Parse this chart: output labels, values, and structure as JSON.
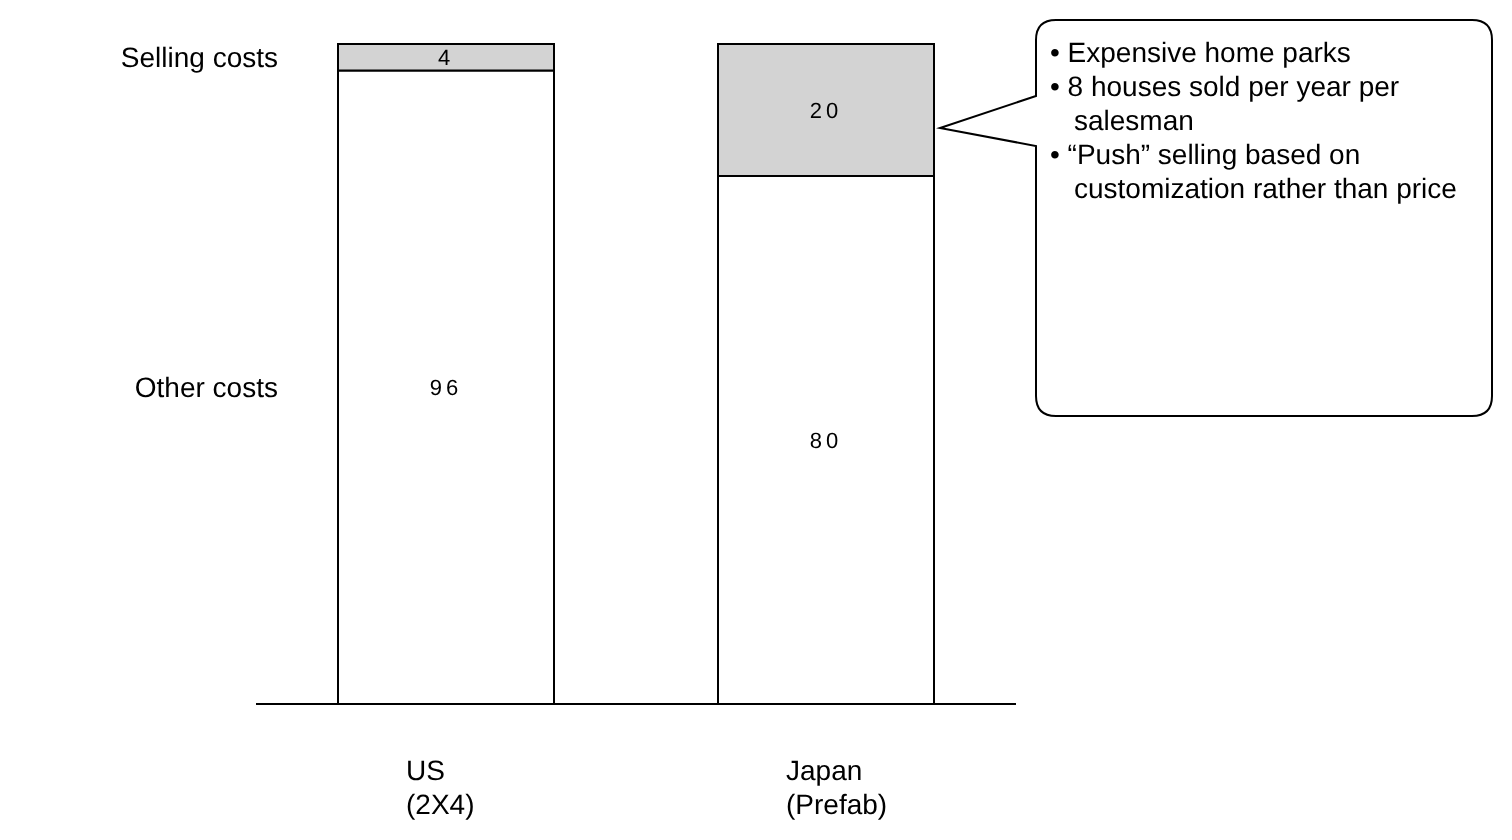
{
  "chart_data": {
    "type": "bar",
    "stacked": true,
    "categories": [
      "US (2X4)",
      "Japan (Prefab)"
    ],
    "series": [
      {
        "name": "Other costs",
        "color": "#ffffff",
        "values": [
          96,
          80
        ]
      },
      {
        "name": "Selling costs",
        "color": "#d3d3d3",
        "values": [
          4,
          20
        ]
      }
    ],
    "data_labels": true,
    "legend": false,
    "grid": false,
    "annotations": [
      "• Expensive home parks",
      "• 8 houses sold per year per salesman",
      "• “Push” selling based on customization rather than price"
    ]
  }
}
